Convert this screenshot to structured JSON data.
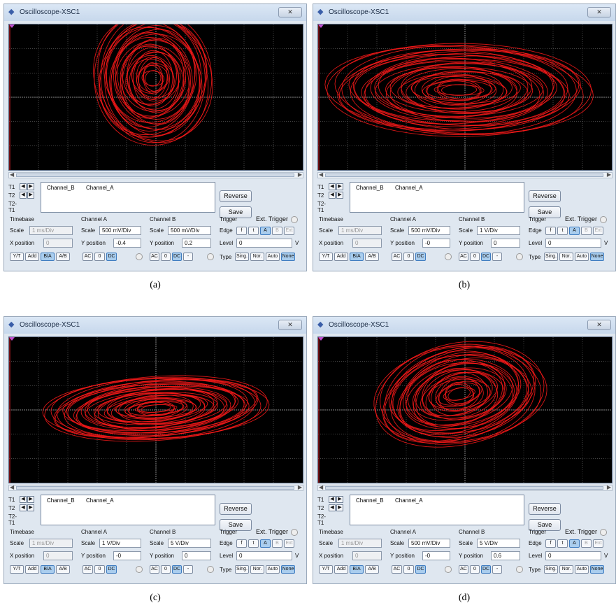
{
  "panels": [
    {
      "id": "a",
      "caption": "(a)",
      "title": "Oscilloscope-XSC1",
      "readout": {
        "col1": "Channel_B",
        "col2": "Channel_A"
      },
      "cursor_labels": [
        "T1",
        "T2",
        "T2-T1"
      ],
      "reverse": "Reverse",
      "save": "Save",
      "ext_trigger": "Ext. Trigger",
      "timebase": {
        "header": "Timebase",
        "scale_label": "Scale",
        "scale": "1 ms/Div",
        "xpos_label": "X position",
        "xpos": "0",
        "buttons": [
          "Y/T",
          "Add",
          "B/A",
          "A/B"
        ],
        "active": "B/A"
      },
      "channel_a": {
        "header": "Channel A",
        "scale_label": "Scale",
        "scale": "500 mV/Div",
        "ypos_label": "Y position",
        "ypos": "-0.4",
        "buttons": [
          "AC",
          "0",
          "DC"
        ],
        "active": "DC"
      },
      "channel_b": {
        "header": "Channel B",
        "scale_label": "Scale",
        "scale": "500 mV/Div",
        "ypos_label": "Y position",
        "ypos": "0.2",
        "buttons": [
          "AC",
          "0",
          "DC",
          "-"
        ],
        "active": "DC"
      },
      "trigger": {
        "header": "Trigger",
        "edge_label": "Edge",
        "edge_buttons": [
          "f",
          "t",
          "A",
          "B",
          "Ext"
        ],
        "level_label": "Level",
        "level": "0",
        "level_unit": "V",
        "type_label": "Type",
        "type_buttons": [
          "Sing.",
          "Nor.",
          "Auto",
          "None"
        ],
        "active_type": "None"
      }
    },
    {
      "id": "b",
      "caption": "(b)",
      "title": "Oscilloscope-XSC1",
      "readout": {
        "col1": "Channel_B",
        "col2": "Channel_A"
      },
      "cursor_labels": [
        "T1",
        "T2",
        "T2-T1"
      ],
      "reverse": "Reverse",
      "save": "Save",
      "ext_trigger": "Ext. Trigger",
      "timebase": {
        "header": "Timebase",
        "scale_label": "Scale",
        "scale": "1 ms/Div",
        "xpos_label": "X position",
        "xpos": "0",
        "buttons": [
          "Y/T",
          "Add",
          "B/A",
          "A/B"
        ],
        "active": "B/A"
      },
      "channel_a": {
        "header": "Channel A",
        "scale_label": "Scale",
        "scale": "500 mV/Div",
        "ypos_label": "Y position",
        "ypos": "-0",
        "buttons": [
          "AC",
          "0",
          "DC"
        ],
        "active": "DC"
      },
      "channel_b": {
        "header": "Channel B",
        "scale_label": "Scale",
        "scale": "1 V/Div",
        "ypos_label": "Y position",
        "ypos": "0",
        "buttons": [
          "AC",
          "0",
          "DC",
          "-"
        ],
        "active": "DC"
      },
      "trigger": {
        "header": "Trigger",
        "edge_label": "Edge",
        "edge_buttons": [
          "f",
          "t",
          "A",
          "B",
          "Ext"
        ],
        "level_label": "Level",
        "level": "0",
        "level_unit": "V",
        "type_label": "Type",
        "type_buttons": [
          "Sing.",
          "Nor.",
          "Auto",
          "None"
        ],
        "active_type": "None"
      }
    },
    {
      "id": "c",
      "caption": "(c)",
      "title": "Oscilloscope-XSC1",
      "readout": {
        "col1": "Channel_B",
        "col2": "Channel_A"
      },
      "cursor_labels": [
        "T1",
        "T2",
        "T2-T1"
      ],
      "reverse": "Reverse",
      "save": "Save",
      "ext_trigger": "Ext. Trigger",
      "timebase": {
        "header": "Timebase",
        "scale_label": "Scale",
        "scale": "1 ms/Div",
        "xpos_label": "X position",
        "xpos": "0",
        "buttons": [
          "Y/T",
          "Add",
          "B/A",
          "A/B"
        ],
        "active": "B/A"
      },
      "channel_a": {
        "header": "Channel A",
        "scale_label": "Scale",
        "scale": "1 V/Div",
        "ypos_label": "Y position",
        "ypos": "-0",
        "buttons": [
          "AC",
          "0",
          "DC"
        ],
        "active": "DC"
      },
      "channel_b": {
        "header": "Channel B",
        "scale_label": "Scale",
        "scale": "5 V/Div",
        "ypos_label": "Y position",
        "ypos": "0",
        "buttons": [
          "AC",
          "0",
          "DC",
          "-"
        ],
        "active": "DC"
      },
      "trigger": {
        "header": "Trigger",
        "edge_label": "Edge",
        "edge_buttons": [
          "f",
          "t",
          "A",
          "B",
          "Ext"
        ],
        "level_label": "Level",
        "level": "0",
        "level_unit": "V",
        "type_label": "Type",
        "type_buttons": [
          "Sing.",
          "Nor.",
          "Auto",
          "None"
        ],
        "active_type": "None"
      }
    },
    {
      "id": "d",
      "caption": "(d)",
      "title": "Oscilloscope-XSC1",
      "readout": {
        "col1": "Channel_B",
        "col2": "Channel_A"
      },
      "cursor_labels": [
        "T1",
        "T2",
        "T2-T1"
      ],
      "reverse": "Reverse",
      "save": "Save",
      "ext_trigger": "Ext. Trigger",
      "timebase": {
        "header": "Timebase",
        "scale_label": "Scale",
        "scale": "1 ms/Div",
        "xpos_label": "X position",
        "xpos": "0",
        "buttons": [
          "Y/T",
          "Add",
          "B/A",
          "A/B"
        ],
        "active": "B/A"
      },
      "channel_a": {
        "header": "Channel A",
        "scale_label": "Scale",
        "scale": "500 mV/Div",
        "ypos_label": "Y position",
        "ypos": "-0",
        "buttons": [
          "AC",
          "0",
          "DC"
        ],
        "active": "DC"
      },
      "channel_b": {
        "header": "Channel B",
        "scale_label": "Scale",
        "scale": "5 V/Div",
        "ypos_label": "Y position",
        "ypos": "0.6",
        "buttons": [
          "AC",
          "0",
          "DC",
          "-"
        ],
        "active": "DC"
      },
      "trigger": {
        "header": "Trigger",
        "edge_label": "Edge",
        "edge_buttons": [
          "f",
          "t",
          "A",
          "B",
          "Ext"
        ],
        "level_label": "Level",
        "level": "0",
        "level_unit": "V",
        "type_label": "Type",
        "type_buttons": [
          "Sing.",
          "Nor.",
          "Auto",
          "None"
        ],
        "active_type": "None"
      }
    }
  ],
  "colors": {
    "trace": "#ff1a1a",
    "screen": "#000000",
    "grid": "#6e6e6e"
  }
}
